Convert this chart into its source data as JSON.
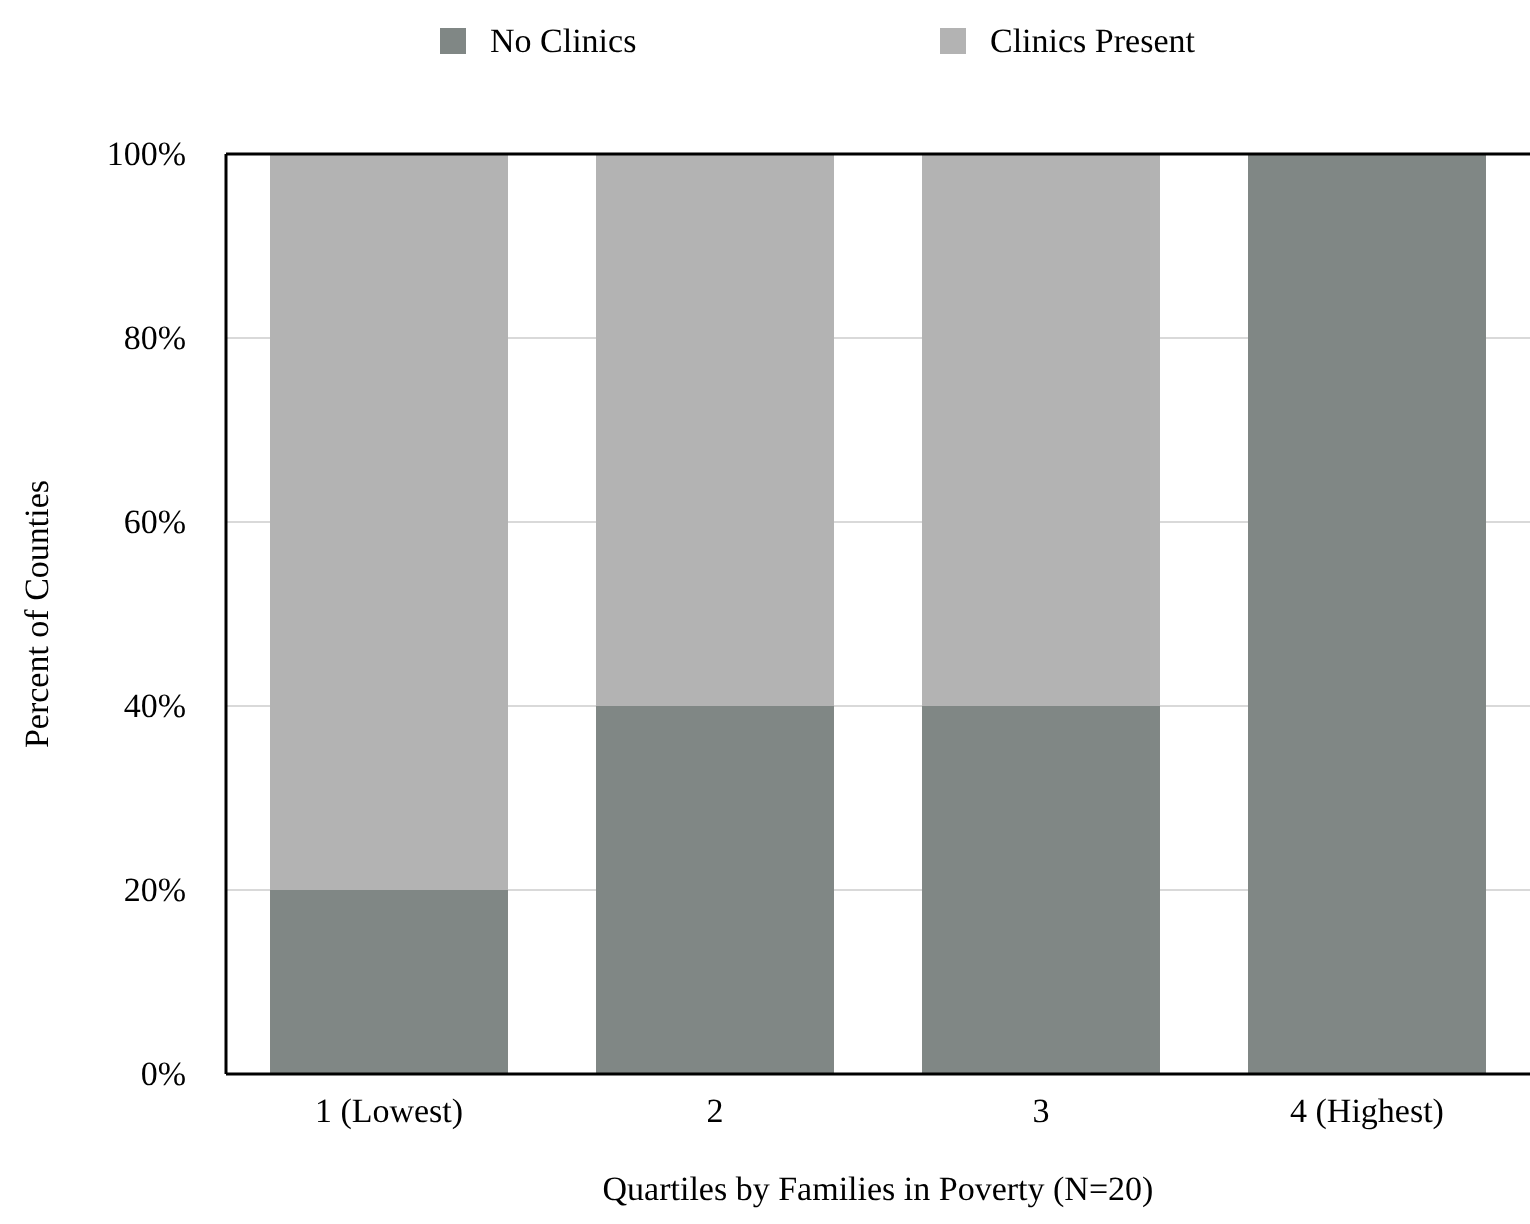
{
  "chart_data": {
    "type": "bar",
    "stacked": true,
    "xlabel": "Quartiles by Families in Poverty (N=20)",
    "ylabel": "Percent of Counties",
    "categories": [
      "1 (Lowest)",
      "2",
      "3",
      "4 (Highest)"
    ],
    "series": [
      {
        "name": "No Clinics",
        "color": "#808785",
        "values": [
          20,
          40,
          40,
          100
        ]
      },
      {
        "name": "Clinics Present",
        "color": "#b3b3b3",
        "values": [
          80,
          60,
          60,
          0
        ]
      }
    ],
    "ylim": [
      0,
      100
    ],
    "yticks": [
      {
        "value": 0,
        "label": "0%"
      },
      {
        "value": 20,
        "label": "20%"
      },
      {
        "value": 40,
        "label": "40%"
      },
      {
        "value": 60,
        "label": "60%"
      },
      {
        "value": 80,
        "label": "80%"
      },
      {
        "value": 100,
        "label": "100%"
      }
    ],
    "grid": "y",
    "legend": "top"
  }
}
